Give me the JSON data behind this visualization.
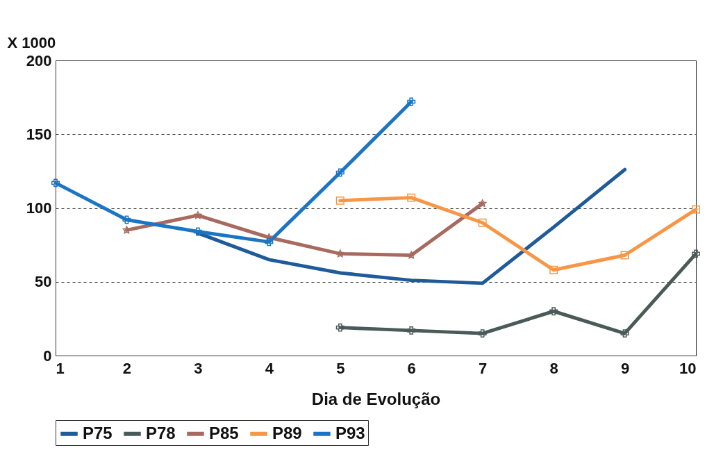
{
  "chart_data": {
    "type": "line",
    "xlabel": "Dia de Evolução",
    "ylabel": "X 1000",
    "x": [
      1,
      2,
      3,
      4,
      5,
      6,
      7,
      8,
      9,
      10
    ],
    "xlim": [
      1,
      10
    ],
    "xticks": [
      1,
      2,
      3,
      4,
      5,
      6,
      7,
      8,
      9,
      10
    ],
    "ylim": [
      0,
      200
    ],
    "yticks": [
      0,
      50,
      100,
      150,
      200
    ],
    "grid": "y",
    "legend": "bottom",
    "line_style": "solid",
    "series": [
      {
        "name": "P75",
        "color": "#1f5b99",
        "marker": "none",
        "values": [
          null,
          null,
          83,
          65,
          56,
          51,
          49,
          87,
          126,
          null
        ]
      },
      {
        "name": "P78",
        "color": "#4a5a58",
        "marker": "cross",
        "values": [
          null,
          null,
          null,
          null,
          19,
          17,
          15,
          30,
          15,
          69
        ]
      },
      {
        "name": "P85",
        "color": "#a86a5e",
        "marker": "star",
        "values": [
          null,
          85,
          95,
          80,
          69,
          68,
          103,
          null,
          null,
          null
        ]
      },
      {
        "name": "P89",
        "color": "#f79646",
        "marker": "square",
        "values": [
          null,
          null,
          null,
          null,
          105,
          107,
          90,
          58,
          68,
          99
        ]
      },
      {
        "name": "P93",
        "color": "#1b75c4",
        "marker": "cross",
        "values": [
          117,
          92,
          84,
          77,
          124,
          172,
          null,
          null,
          null,
          null
        ]
      }
    ]
  }
}
